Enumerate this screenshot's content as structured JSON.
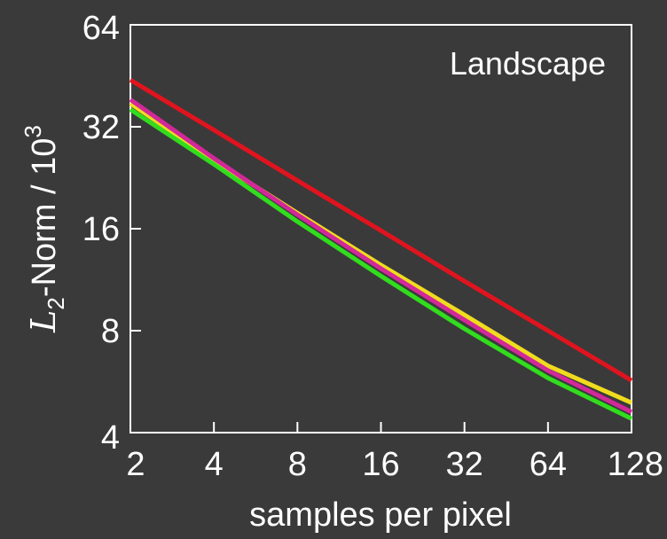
{
  "chart_data": {
    "type": "line",
    "annotation": "Landscape",
    "xlabel": "samples per pixel",
    "ylabel_main": "L",
    "ylabel_sub": "2",
    "ylabel_rest": "-Norm / 10",
    "ylabel_sup": "3",
    "x_scale": "log2",
    "y_scale": "log2",
    "xlim": [
      2,
      128
    ],
    "ylim": [
      4,
      64
    ],
    "x_ticks": [
      2,
      4,
      8,
      16,
      32,
      64,
      128
    ],
    "x_tick_labels": [
      "2",
      "4",
      "8",
      "16",
      "32",
      "64",
      "128"
    ],
    "y_ticks": [
      4,
      8,
      16,
      32,
      64
    ],
    "y_tick_labels": [
      "4",
      "8",
      "16",
      "32",
      "64"
    ],
    "grid": false,
    "legend": "none",
    "series": [
      {
        "color": "#e0141e",
        "x": [
          2,
          4,
          8,
          16,
          32,
          64,
          128
        ],
        "y": [
          44,
          31.3,
          22.2,
          15.8,
          11.2,
          8.0,
          5.7
        ]
      },
      {
        "color": "#f0dc1e",
        "x": [
          2,
          4,
          8,
          16,
          32,
          64,
          128
        ],
        "y": [
          37.5,
          25.5,
          17.8,
          12.5,
          8.9,
          6.3,
          4.9
        ]
      },
      {
        "color": "#d2289a",
        "x": [
          2,
          4,
          8,
          16,
          32,
          64,
          128
        ],
        "y": [
          38.5,
          25.8,
          17.6,
          12.2,
          8.6,
          6.1,
          4.6
        ]
      },
      {
        "color": "#32dc1e",
        "x": [
          2,
          4,
          8,
          16,
          32,
          64,
          128
        ],
        "y": [
          36,
          24.8,
          16.8,
          11.6,
          8.1,
          5.8,
          4.4
        ]
      }
    ]
  }
}
